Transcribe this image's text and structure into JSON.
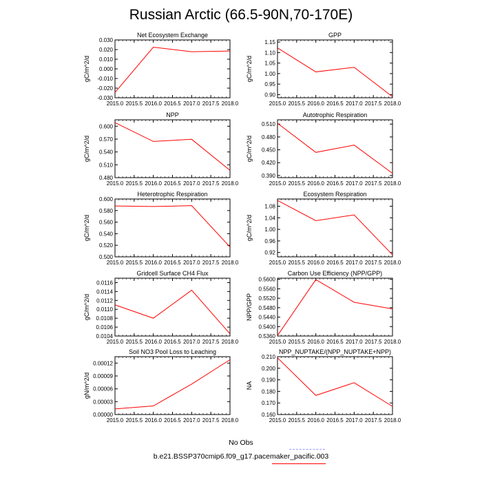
{
  "title": "Russian Arctic (66.5-90N,70-170E)",
  "legend": {
    "obs_label": "No Obs",
    "obs_color": "#9999ff",
    "model_label": "b.e21.BSSP370cmip6.f09_g17.pacemaker_pacific.003",
    "model_color": "#ff0000"
  },
  "chart_data": [
    {
      "type": "line",
      "title": "Net Ecosystem Exchange",
      "ylabel": "gC/m^2/d",
      "x": [
        2015,
        2016,
        2017,
        2018
      ],
      "series": [
        {
          "name": "b.e21.BSSP370cmip6.f09_g17.pacemaker_pacific.003",
          "values": [
            -0.0245,
            0.0225,
            0.0178,
            0.0185
          ]
        }
      ],
      "xlim": [
        2015,
        2018
      ],
      "ylim": [
        -0.03,
        0.03
      ],
      "x_ticks": [
        "2015.0",
        "2015.5",
        "2016.0",
        "2016.5",
        "2017.0",
        "2017.5",
        "2018.0"
      ],
      "y_ticks": [
        "0.030",
        "0.020",
        "0.010",
        "0.000",
        "-0.010",
        "-0.020",
        "-0.030"
      ]
    },
    {
      "type": "line",
      "title": "GPP",
      "ylabel": "gC/m^2/d",
      "x": [
        2015,
        2016,
        2017,
        2018
      ],
      "series": [
        {
          "name": "b.e21.BSSP370cmip6.f09_g17.pacemaker_pacific.003",
          "values": [
            1.122,
            1.008,
            1.03,
            0.89
          ]
        }
      ],
      "xlim": [
        2015,
        2018
      ],
      "ylim": [
        0.885,
        1.16
      ],
      "x_ticks": [
        "2015.0",
        "2015.5",
        "2016.0",
        "2016.5",
        "2017.0",
        "2017.5",
        "2018.0"
      ],
      "y_ticks": [
        "1.15",
        "1.10",
        "1.05",
        "1.00",
        "0.95",
        "0.90"
      ]
    },
    {
      "type": "line",
      "title": "NPP",
      "ylabel": "gC/m^2/d",
      "x": [
        2015,
        2016,
        2017,
        2018
      ],
      "series": [
        {
          "name": "b.e21.BSSP370cmip6.f09_g17.pacemaker_pacific.003",
          "values": [
            0.6085,
            0.5645,
            0.5695,
            0.497
          ]
        }
      ],
      "xlim": [
        2015,
        2018
      ],
      "ylim": [
        0.48,
        0.615
      ],
      "x_ticks": [
        "2015.0",
        "2015.5",
        "2016.0",
        "2016.5",
        "2017.0",
        "2017.5",
        "2018.0"
      ],
      "y_ticks": [
        "0.600",
        "0.570",
        "0.540",
        "0.510",
        "0.480"
      ]
    },
    {
      "type": "line",
      "title": "Autotrophic Respiration",
      "ylabel": "gC/m^2/d",
      "x": [
        2015,
        2016,
        2017,
        2018
      ],
      "series": [
        {
          "name": "b.e21.BSSP370cmip6.f09_g17.pacemaker_pacific.003",
          "values": [
            0.512,
            0.444,
            0.461,
            0.395
          ]
        }
      ],
      "xlim": [
        2015,
        2018
      ],
      "ylim": [
        0.385,
        0.52
      ],
      "x_ticks": [
        "2015.0",
        "2015.5",
        "2016.0",
        "2016.5",
        "2017.0",
        "2017.5",
        "2018.0"
      ],
      "y_ticks": [
        "0.510",
        "0.480",
        "0.450",
        "0.420",
        "0.390"
      ]
    },
    {
      "type": "line",
      "title": "Heterotrophic Respiration",
      "ylabel": "gC/m^2/d",
      "x": [
        2015,
        2016,
        2017,
        2018
      ],
      "series": [
        {
          "name": "b.e21.BSSP370cmip6.f09_g17.pacemaker_pacific.003",
          "values": [
            0.588,
            0.587,
            0.5885,
            0.517
          ]
        }
      ],
      "xlim": [
        2015,
        2018
      ],
      "ylim": [
        0.5,
        0.6
      ],
      "x_ticks": [
        "2015.0",
        "2015.5",
        "2016.0",
        "2016.5",
        "2017.0",
        "2017.5",
        "2018.0"
      ],
      "y_ticks": [
        "0.600",
        "0.580",
        "0.560",
        "0.540",
        "0.520",
        "0.500"
      ]
    },
    {
      "type": "line",
      "title": "Ecosystem Respiration",
      "ylabel": "gC/m^2/d",
      "x": [
        2015,
        2016,
        2017,
        2018
      ],
      "series": [
        {
          "name": "b.e21.BSSP370cmip6.f09_g17.pacemaker_pacific.003",
          "values": [
            1.1,
            1.03,
            1.05,
            0.912
          ]
        }
      ],
      "xlim": [
        2015,
        2018
      ],
      "ylim": [
        0.905,
        1.105
      ],
      "x_ticks": [
        "2015.0",
        "2015.5",
        "2016.0",
        "2016.5",
        "2017.0",
        "2017.5",
        "2018.0"
      ],
      "y_ticks": [
        "1.08",
        "1.04",
        "1.00",
        "0.96",
        "0.92"
      ]
    },
    {
      "type": "line",
      "title": "Gridcell Surface CH4 Flux",
      "ylabel": "gC/m^2/d",
      "x": [
        2015,
        2016,
        2017,
        2018
      ],
      "series": [
        {
          "name": "b.e21.BSSP370cmip6.f09_g17.pacemaker_pacific.003",
          "values": [
            0.0111,
            0.0108,
            0.01143,
            0.01045
          ]
        }
      ],
      "xlim": [
        2015,
        2018
      ],
      "ylim": [
        0.0104,
        0.0117
      ],
      "x_ticks": [
        "2015.0",
        "2015.5",
        "2016.0",
        "2016.5",
        "2017.0",
        "2017.5",
        "2018.0"
      ],
      "y_ticks": [
        "0.0116",
        "0.0114",
        "0.0112",
        "0.0110",
        "0.0108",
        "0.0106",
        "0.0104"
      ]
    },
    {
      "type": "line",
      "title": "Carbon Use Efficiency (NPP/GPP)",
      "ylabel": "NPP/GPP",
      "x": [
        2015,
        2016,
        2017,
        2018
      ],
      "series": [
        {
          "name": "b.e21.BSSP370cmip6.f09_g17.pacemaker_pacific.003",
          "values": [
            0.5362,
            0.5599,
            0.5503,
            0.5475
          ]
        }
      ],
      "xlim": [
        2015,
        2018
      ],
      "ylim": [
        0.536,
        0.5605
      ],
      "x_ticks": [
        "2015.0",
        "2015.5",
        "2016.0",
        "2016.5",
        "2017.0",
        "2017.5",
        "2018.0"
      ],
      "y_ticks": [
        "0.5600",
        "0.5560",
        "0.5520",
        "0.5480",
        "0.5440",
        "0.5400",
        "0.5360"
      ]
    },
    {
      "type": "line",
      "title": "Soil NO3 Pool Loss to Leaching",
      "ylabel": "gN/m^2/d",
      "x": [
        2015,
        2016,
        2017,
        2018
      ],
      "series": [
        {
          "name": "b.e21.BSSP370cmip6.f09_g17.pacemaker_pacific.003",
          "values": [
            1.3e-05,
            2e-05,
            7.1e-05,
            0.000128
          ]
        }
      ],
      "xlim": [
        2015,
        2018
      ],
      "ylim": [
        0.0,
        0.000135
      ],
      "x_ticks": [
        "2015.0",
        "2015.5",
        "2016.0",
        "2016.5",
        "2017.0",
        "2017.5",
        "2018.0"
      ],
      "y_ticks": [
        "0.00012",
        "0.00009",
        "0.00006",
        "0.00003",
        "0.00000"
      ]
    },
    {
      "type": "line",
      "title": "NPP_NUPTAKE/(NPP_NUPTAKE+NPP)",
      "ylabel": "NA",
      "x": [
        2015,
        2016,
        2017,
        2018
      ],
      "series": [
        {
          "name": "b.e21.BSSP370cmip6.f09_g17.pacemaker_pacific.003",
          "values": [
            0.209,
            0.1765,
            0.1875,
            0.167
          ]
        }
      ],
      "xlim": [
        2015,
        2018
      ],
      "ylim": [
        0.16,
        0.21
      ],
      "x_ticks": [
        "2015.0",
        "2015.5",
        "2016.0",
        "2016.5",
        "2017.0",
        "2017.5",
        "2018.0"
      ],
      "y_ticks": [
        "0.210",
        "0.200",
        "0.190",
        "0.180",
        "0.170",
        "0.160"
      ]
    }
  ]
}
